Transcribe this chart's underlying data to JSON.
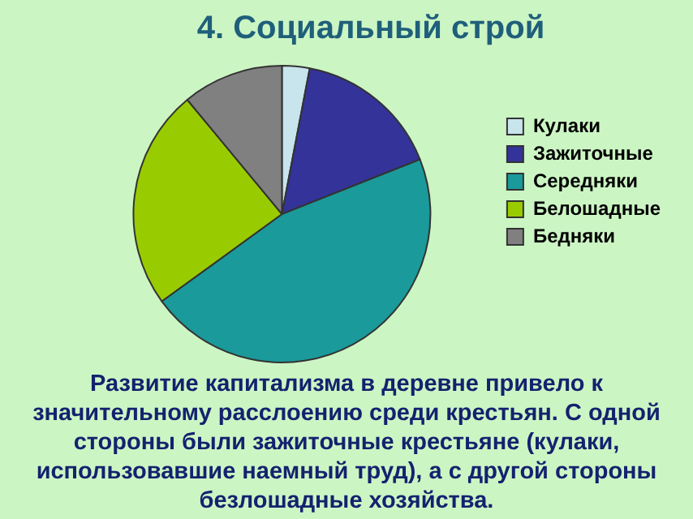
{
  "chart_data": {
    "type": "pie",
    "title": "4. Социальный строй",
    "categories": [
      "Кулаки",
      "Зажиточные",
      "Середняки",
      "Белошадные",
      "Бедняки"
    ],
    "values": [
      3,
      16,
      46,
      24,
      11
    ],
    "colors": [
      "#c8e4ec",
      "#333399",
      "#1a9a9a",
      "#99cc00",
      "#808080"
    ],
    "legend": "right",
    "annotations": [
      "Развитие капитализма в деревне привело к значительному расслоению среди крестьян. С одной стороны были зажиточные крестьяне (кулаки, использовавшие наемный труд), а с другой стороны безлошадные хозяйства."
    ]
  }
}
